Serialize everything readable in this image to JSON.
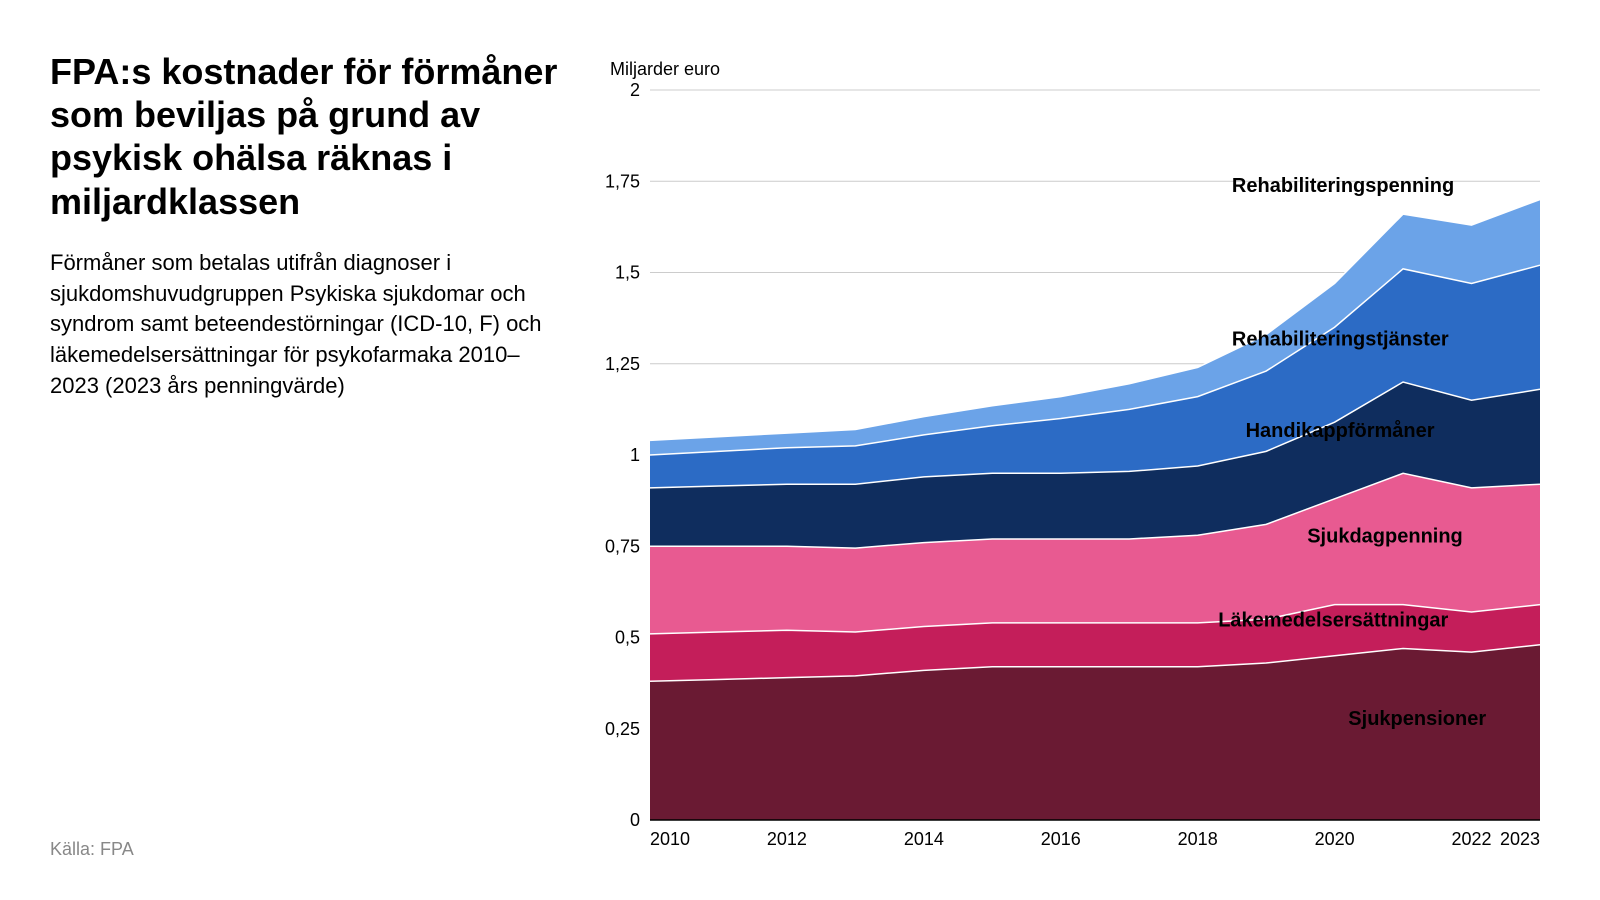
{
  "title": "FPA:s kostnader för förmåner som beviljas på grund av psykisk ohälsa räknas i miljardklassen",
  "subtitle": "Förmåner som betalas utifrån diagnoser i sjukdomshuvudgruppen Psykiska sjukdomar och syndrom samt beteendestörningar (ICD-10, F) och läkemedelsersättningar för psykofarmaka 2010–2023 (2023 års penningvärde)",
  "source": "Källa: FPA",
  "chart": {
    "type": "stacked-area",
    "y_unit_label": "Miljarder euro",
    "background_color": "#ffffff",
    "grid_color": "#cccccc",
    "axis_color": "#000000",
    "title_fontsize": 36,
    "subtitle_fontsize": 22,
    "tick_fontsize": 18,
    "series_label_fontsize": 20,
    "series_label_fontweight": 700,
    "xlim": [
      2010,
      2023
    ],
    "ylim": [
      0,
      2
    ],
    "ytick_step": 0.25,
    "yticks": [
      0,
      0.25,
      0.5,
      0.75,
      1,
      1.25,
      1.5,
      1.75,
      2
    ],
    "ytick_labels": [
      "0",
      "0,25",
      "0,5",
      "0,75",
      "1",
      "1,25",
      "1,5",
      "1,75",
      "2"
    ],
    "xticks": [
      2010,
      2012,
      2014,
      2016,
      2018,
      2020,
      2022,
      2023
    ],
    "years": [
      2010,
      2011,
      2012,
      2013,
      2014,
      2015,
      2016,
      2017,
      2018,
      2019,
      2020,
      2021,
      2022,
      2023
    ],
    "series": [
      {
        "name": "Sjukpensioner",
        "color": "#6a1a33",
        "values": [
          0.38,
          0.385,
          0.39,
          0.395,
          0.41,
          0.42,
          0.42,
          0.42,
          0.42,
          0.43,
          0.45,
          0.47,
          0.46,
          0.48
        ]
      },
      {
        "name": "Läkemedelsersättningar",
        "color": "#c41e5a",
        "values": [
          0.13,
          0.13,
          0.13,
          0.12,
          0.12,
          0.12,
          0.12,
          0.12,
          0.12,
          0.12,
          0.14,
          0.12,
          0.11,
          0.11
        ]
      },
      {
        "name": "Sjukdagpenning",
        "color": "#e85a91",
        "values": [
          0.24,
          0.235,
          0.23,
          0.23,
          0.23,
          0.23,
          0.23,
          0.23,
          0.24,
          0.26,
          0.29,
          0.36,
          0.34,
          0.33
        ]
      },
      {
        "name": "Handikappförmåner",
        "color": "#0f2d5e",
        "values": [
          0.16,
          0.165,
          0.17,
          0.175,
          0.18,
          0.18,
          0.18,
          0.185,
          0.19,
          0.2,
          0.21,
          0.25,
          0.24,
          0.26
        ]
      },
      {
        "name": "Rehabiliteringstjänster",
        "color": "#2c6bc5",
        "values": [
          0.09,
          0.095,
          0.1,
          0.105,
          0.115,
          0.13,
          0.15,
          0.17,
          0.19,
          0.22,
          0.26,
          0.31,
          0.32,
          0.34
        ]
      },
      {
        "name": "Rehabiliteringspenning",
        "color": "#6ba3e8",
        "values": [
          0.04,
          0.04,
          0.04,
          0.045,
          0.05,
          0.055,
          0.06,
          0.07,
          0.08,
          0.1,
          0.12,
          0.15,
          0.16,
          0.18
        ]
      }
    ],
    "series_label_positions": {
      "Sjukpensioner": {
        "x": 2020.2,
        "y": 0.26
      },
      "Läkemedelsersättningar": {
        "x": 2018.3,
        "y": 0.53
      },
      "Sjukdagpenning": {
        "x": 2019.6,
        "y": 0.76
      },
      "Handikappförmåner": {
        "x": 2018.7,
        "y": 1.05
      },
      "Rehabiliteringstjänster": {
        "x": 2018.5,
        "y": 1.3
      },
      "Rehabiliteringspenning": {
        "x": 2018.5,
        "y": 1.72
      }
    }
  }
}
